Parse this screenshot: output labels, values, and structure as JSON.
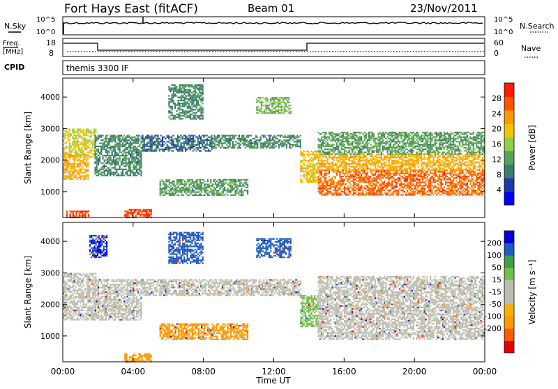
{
  "header": {
    "station": "Fort Hays East (fitACF)",
    "beam": "Beam 01",
    "date": "23/Nov/2011"
  },
  "noise_panel": {
    "left_label": "N.Sky",
    "right_label": "N.Search",
    "left_ticks": [
      "10^5",
      "10^0"
    ],
    "right_ticks": [
      "10^5",
      "10^0"
    ],
    "series": [
      {
        "name": "N.Sky",
        "style": "solid",
        "value": "10^5"
      },
      {
        "name": "N.Search",
        "style": "dotted"
      }
    ]
  },
  "freq_panel": {
    "left_label_1": "Freq.",
    "left_label_2": "[MHz]",
    "right_label": "Nave",
    "left_ticks": [
      "18",
      "8"
    ],
    "right_ticks": [
      "60",
      "0"
    ],
    "cpid_label": "CPID",
    "cpid_text": "themis 3300 IF"
  },
  "colors": {
    "power_scale": [
      "#0000ff",
      "#1e3aa8",
      "#3a7d6a",
      "#5aa05a",
      "#8fd046",
      "#f5c400",
      "#ff9900",
      "#ff5500",
      "#ff1a00"
    ],
    "velocity_scale": [
      "#e80000",
      "#ff5a00",
      "#ff9900",
      "#f5b000",
      "#bdbdb0",
      "#bdbdb0",
      "#6fc04a",
      "#3aa04a",
      "#1e5cc0",
      "#0000d8"
    ]
  },
  "chart_data": [
    {
      "type": "heatmap",
      "name": "power",
      "xlabel": "Time UT",
      "ylabel": "Slant Range [km]",
      "xlim": [
        0,
        24
      ],
      "ylim": [
        180,
        4600
      ],
      "x_ticks": [
        "00:00",
        "04:00",
        "08:00",
        "12:00",
        "16:00",
        "20:00",
        "00:00"
      ],
      "y_ticks": [
        1000,
        2000,
        3000,
        4000
      ],
      "colorbar_label": "Power [dB]",
      "colorbar_ticks": [
        4,
        8,
        12,
        16,
        20,
        24,
        28
      ],
      "colorbar_range": [
        0,
        32
      ],
      "regions": [
        {
          "t0": 0.0,
          "t1": 1.9,
          "r0": 2100,
          "r1": 3000,
          "value": 18
        },
        {
          "t0": 0.0,
          "t1": 1.4,
          "r0": 1400,
          "r1": 2200,
          "value": 22
        },
        {
          "t0": 1.8,
          "t1": 4.5,
          "r0": 1500,
          "r1": 2800,
          "value": 10
        },
        {
          "t0": 4.5,
          "t1": 8.5,
          "r0": 2300,
          "r1": 2800,
          "value": 8
        },
        {
          "t0": 8.5,
          "t1": 13.5,
          "r0": 2400,
          "r1": 2800,
          "value": 10
        },
        {
          "t0": 5.5,
          "t1": 10.5,
          "r0": 900,
          "r1": 1400,
          "value": 12
        },
        {
          "t0": 3.5,
          "t1": 5.0,
          "r0": 180,
          "r1": 450,
          "value": 28
        },
        {
          "t0": 0.2,
          "t1": 1.5,
          "r0": 180,
          "r1": 400,
          "value": 28
        },
        {
          "t0": 13.5,
          "t1": 14.5,
          "r0": 1300,
          "r1": 2300,
          "value": 20
        },
        {
          "t0": 14.5,
          "t1": 24.0,
          "r0": 900,
          "r1": 1700,
          "value": 26
        },
        {
          "t0": 14.5,
          "t1": 24.0,
          "r0": 1700,
          "r1": 2200,
          "value": 22
        },
        {
          "t0": 14.5,
          "t1": 24.0,
          "r0": 2200,
          "r1": 2900,
          "value": 12
        },
        {
          "t0": 6.0,
          "t1": 8.0,
          "r0": 3300,
          "r1": 4400,
          "value": 10
        },
        {
          "t0": 11.0,
          "t1": 13.0,
          "r0": 3500,
          "r1": 4000,
          "value": 14
        }
      ]
    },
    {
      "type": "heatmap",
      "name": "velocity",
      "xlabel": "Time UT",
      "ylabel": "Slant Range [km]",
      "xlim": [
        0,
        24
      ],
      "ylim": [
        180,
        4600
      ],
      "x_ticks": [
        "00:00",
        "04:00",
        "08:00",
        "12:00",
        "16:00",
        "20:00",
        "00:00"
      ],
      "y_ticks": [
        1000,
        2000,
        3000,
        4000
      ],
      "colorbar_label": "Velocity [m s⁻¹]",
      "colorbar_ticks": [
        "200",
        "100",
        "50",
        "15",
        "-15",
        "-50",
        "-100",
        "-200"
      ],
      "regions": [
        {
          "t0": 0.0,
          "t1": 1.9,
          "r0": 1500,
          "r1": 3000,
          "value": 0
        },
        {
          "t0": 1.8,
          "t1": 4.5,
          "r0": 1500,
          "r1": 2800,
          "value": 0
        },
        {
          "t0": 4.5,
          "t1": 13.5,
          "r0": 2300,
          "r1": 2800,
          "value": 0
        },
        {
          "t0": 5.5,
          "t1": 10.5,
          "r0": 900,
          "r1": 1400,
          "value": -60
        },
        {
          "t0": 3.5,
          "t1": 5.0,
          "r0": 180,
          "r1": 450,
          "value": -60
        },
        {
          "t0": 13.5,
          "t1": 14.5,
          "r0": 1300,
          "r1": 2300,
          "value": 30
        },
        {
          "t0": 14.5,
          "t1": 24.0,
          "r0": 900,
          "r1": 1700,
          "value": 0
        },
        {
          "t0": 14.5,
          "t1": 24.0,
          "r0": 1700,
          "r1": 2900,
          "value": 0
        },
        {
          "t0": 1.5,
          "t1": 2.5,
          "r0": 3500,
          "r1": 4200,
          "value": 200
        },
        {
          "t0": 6.0,
          "t1": 8.0,
          "r0": 3300,
          "r1": 4300,
          "value": 150
        },
        {
          "t0": 11.0,
          "t1": 13.0,
          "r0": 3500,
          "r1": 4100,
          "value": 150
        }
      ]
    }
  ]
}
